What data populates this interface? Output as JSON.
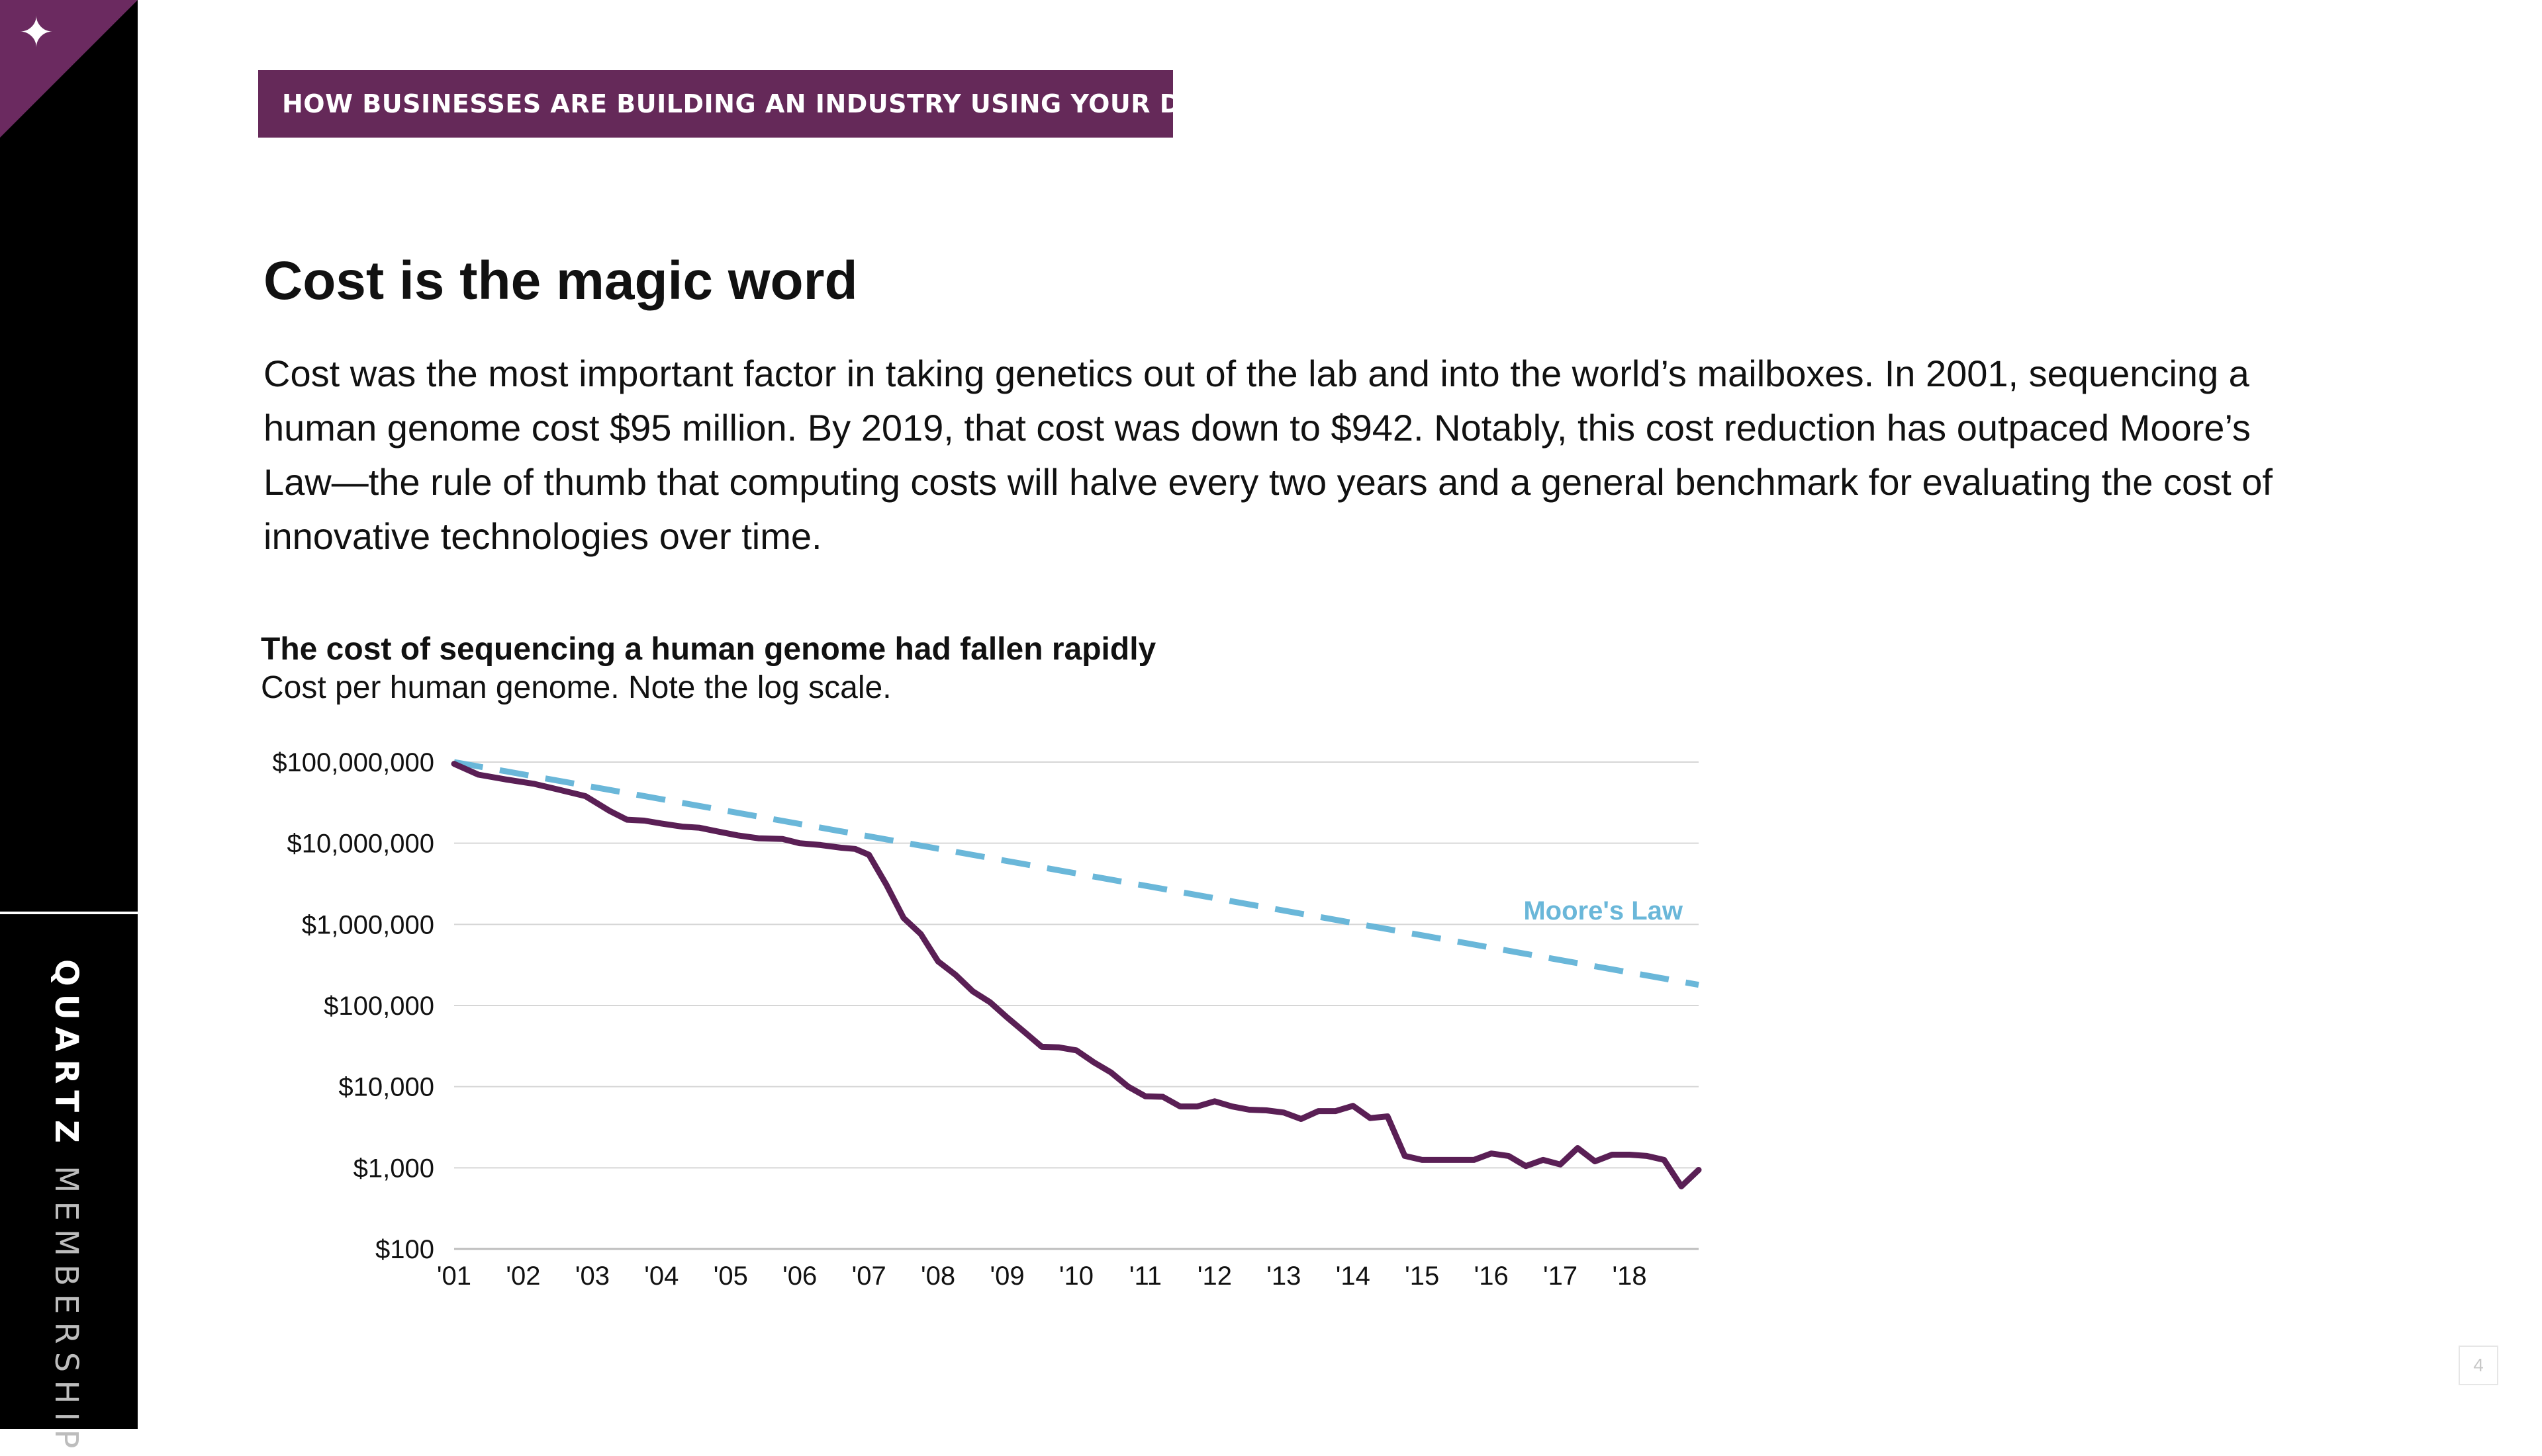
{
  "sidebar": {
    "badge_icon": "sparkle-icon",
    "brand_primary": "QUARTZ",
    "brand_secondary": "MEMBERSHIP",
    "accent_color": "#6b2a60"
  },
  "kicker": "HOW BUSINESSES ARE BUILDING AN INDUSTRY USING YOUR DNA",
  "title": "Cost is the magic word",
  "intro": "Cost was the most important factor in taking genetics out of the lab and into the world’s mailboxes. In 2001, sequencing a human genome cost $95 million. By 2019, that cost was down to $942. Notably, this cost reduction has outpaced Moore’s Law—the rule of thumb that computing costs will halve every two years and a general benchmark for evaluating the cost of innovative technologies over time.",
  "page_number": "4",
  "chart_data": {
    "type": "line",
    "title": "The cost of sequencing a human genome had fallen rapidly",
    "subtitle": "Cost per human genome. Note the log scale.",
    "y_scale": "log",
    "ylim": [
      100,
      100000000
    ],
    "y_ticks": [
      100,
      1000,
      10000,
      100000,
      1000000,
      10000000,
      100000000
    ],
    "y_tick_labels": [
      "$100",
      "$1,000",
      "$10,000",
      "$100,000",
      "$1,000,000",
      "$10,000,000",
      "$100,000,000"
    ],
    "xlim": [
      2001.0,
      2019.0
    ],
    "x_ticks": [
      2001,
      2002,
      2003,
      2004,
      2005,
      2006,
      2007,
      2008,
      2009,
      2010,
      2011,
      2012,
      2013,
      2014,
      2015,
      2016,
      2017,
      2018
    ],
    "x_tick_labels": [
      "'01",
      "'02",
      "'03",
      "'04",
      "'05",
      "'06",
      "'07",
      "'08",
      "'09",
      "'10",
      "'11",
      "'12",
      "'13",
      "'14",
      "'15",
      "'16",
      "'17",
      "'18"
    ],
    "grid": true,
    "series": [
      {
        "name": "",
        "color": "#5a1f55",
        "style": "solid",
        "points": [
          [
            2001.0,
            95000000
          ],
          [
            2001.35,
            70000000
          ],
          [
            2001.75,
            61000000
          ],
          [
            2002.15,
            54000000
          ],
          [
            2002.5,
            46000000
          ],
          [
            2002.9,
            38000000
          ],
          [
            2003.25,
            25000000
          ],
          [
            2003.5,
            19500000
          ],
          [
            2003.75,
            19000000
          ],
          [
            2004.0,
            17500000
          ],
          [
            2004.3,
            16000000
          ],
          [
            2004.55,
            15500000
          ],
          [
            2004.8,
            14000000
          ],
          [
            2005.1,
            12500000
          ],
          [
            2005.4,
            11500000
          ],
          [
            2005.75,
            11300000
          ],
          [
            2006.0,
            10000000
          ],
          [
            2006.3,
            9500000
          ],
          [
            2006.6,
            8800000
          ],
          [
            2006.8,
            8500000
          ],
          [
            2007.0,
            7200000
          ],
          [
            2007.25,
            3100000
          ],
          [
            2007.5,
            1200000
          ],
          [
            2007.75,
            760000
          ],
          [
            2008.0,
            350000
          ],
          [
            2008.25,
            240000
          ],
          [
            2008.5,
            150000
          ],
          [
            2008.75,
            110000
          ],
          [
            2009.0,
            71000.0
          ],
          [
            2009.25,
            47000
          ],
          [
            2009.5,
            31000
          ],
          [
            2009.75,
            30500
          ],
          [
            2010.0,
            28000
          ],
          [
            2010.25,
            20000
          ],
          [
            2010.5,
            15000
          ],
          [
            2010.75,
            10000
          ],
          [
            2011.0,
            7600
          ],
          [
            2011.25,
            7500
          ],
          [
            2011.5,
            5700
          ],
          [
            2011.75,
            5700
          ],
          [
            2012.0,
            6600
          ],
          [
            2012.25,
            5700
          ],
          [
            2012.5,
            5200
          ],
          [
            2012.75,
            5100
          ],
          [
            2013.0,
            4800
          ],
          [
            2013.25,
            4000
          ],
          [
            2013.5,
            5000
          ],
          [
            2013.75,
            5000
          ],
          [
            2014.0,
            5800
          ],
          [
            2014.25,
            4100
          ],
          [
            2014.5,
            4300
          ],
          [
            2014.75,
            1400
          ],
          [
            2015.0,
            1250
          ],
          [
            2015.25,
            1250
          ],
          [
            2015.5,
            1250
          ],
          [
            2015.75,
            1250
          ],
          [
            2016.0,
            1500
          ],
          [
            2016.25,
            1400
          ],
          [
            2016.5,
            1050
          ],
          [
            2016.75,
            1250
          ],
          [
            2017.0,
            1100
          ],
          [
            2017.25,
            1750
          ],
          [
            2017.5,
            1200
          ],
          [
            2017.75,
            1450
          ],
          [
            2018.0,
            1450
          ],
          [
            2018.25,
            1400
          ],
          [
            2018.5,
            1250
          ],
          [
            2018.75,
            590
          ],
          [
            2019.0,
            942
          ]
        ]
      },
      {
        "name": "Moore's Law",
        "color": "#6ab7d9",
        "style": "dashed",
        "points": [
          [
            2001.0,
            100000000
          ],
          [
            2019.0,
            180000
          ]
        ]
      }
    ]
  }
}
